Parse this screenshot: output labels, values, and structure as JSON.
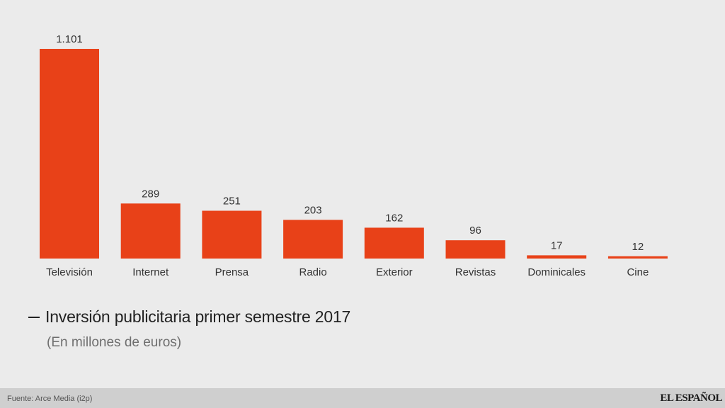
{
  "chart_data": {
    "type": "bar",
    "title": "Inversión publicitaria primer semestre 2017",
    "subtitle": "(En millones de euros)",
    "categories": [
      "Televisión",
      "Internet",
      "Prensa",
      "Radio",
      "Exterior",
      "Revistas",
      "Dominicales",
      "Cine"
    ],
    "values": [
      1101,
      289,
      251,
      203,
      162,
      96,
      17,
      12
    ],
    "value_labels": [
      "1.101",
      "289",
      "251",
      "203",
      "162",
      "96",
      "17",
      "12"
    ],
    "ylim": [
      0,
      1101
    ],
    "grid": false,
    "bar_color": "#e84118"
  },
  "footer": {
    "source": "Fuente: Arce Media (i2p)",
    "brand": "EL ESPAÑOL"
  }
}
